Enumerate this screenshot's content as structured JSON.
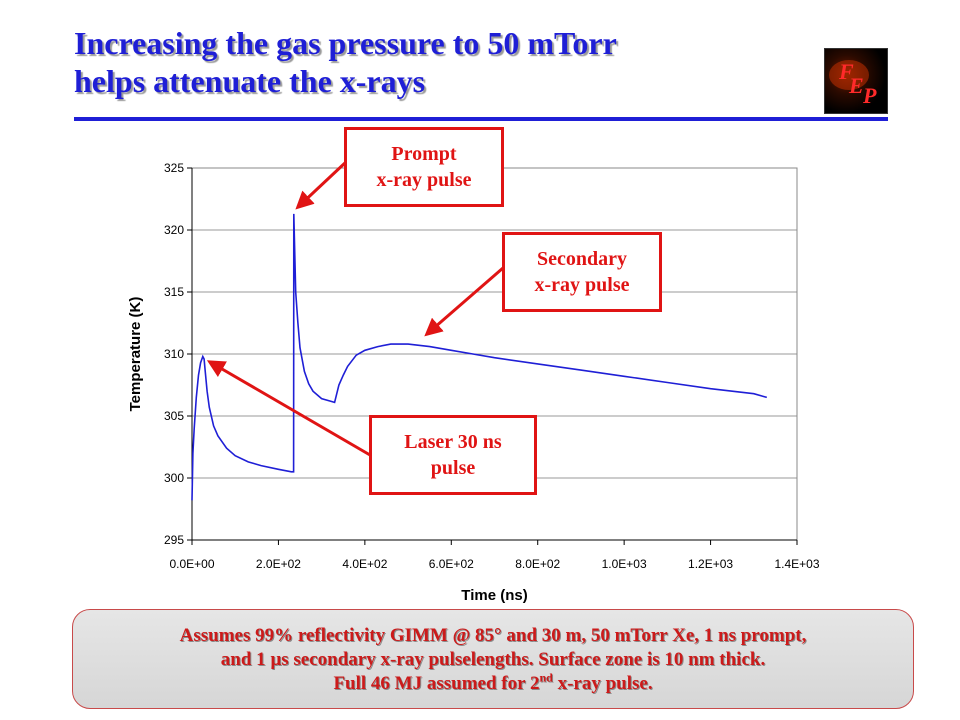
{
  "slide": {
    "title_line1": "Increasing the gas pressure to 50 mTorr",
    "title_line2": "helps attenuate the x-rays",
    "logo_text": [
      "F",
      "E",
      "P"
    ]
  },
  "callouts": {
    "prompt": [
      "Prompt",
      "x-ray pulse"
    ],
    "secondary": [
      "Secondary",
      "x-ray pulse"
    ],
    "laser": [
      "Laser 30 ns",
      "pulse"
    ]
  },
  "note": {
    "line1": "Assumes 99% reflectivity GIMM @ 85° and 30 m, 50 mTorr Xe, 1 ns prompt,",
    "line2_pre": "and 1 ",
    "line2_mu": "μ",
    "line2_post": "s secondary x-ray pulselengths. Surface zone is 10 nm thick.",
    "line3_pre": "Full 46 MJ assumed for 2",
    "line3_sup": "nd",
    "line3_post": " x-ray pulse."
  },
  "colors": {
    "title": "#1f1fd6",
    "series": "#1f1fd6",
    "callout": "#e01414"
  },
  "chart_data": {
    "type": "line",
    "xlabel": "Time (ns)",
    "ylabel": "Temperature (K)",
    "xlim": [
      0,
      1400
    ],
    "ylim": [
      295,
      325
    ],
    "xticks": [
      0,
      200,
      400,
      600,
      800,
      1000,
      1200,
      1400
    ],
    "xtick_labels": [
      "0.0E+00",
      "2.0E+02",
      "4.0E+02",
      "6.0E+02",
      "8.0E+02",
      "1.0E+03",
      "1.2E+03",
      "1.4E+03"
    ],
    "yticks": [
      295,
      300,
      305,
      310,
      315,
      320,
      325
    ],
    "ytick_labels": [
      "295",
      "300",
      "305",
      "310",
      "315",
      "320",
      "325"
    ],
    "grid": "horizontal",
    "legend": "none",
    "series": [
      {
        "x": [
          0,
          2,
          5,
          10,
          15,
          20,
          25,
          28,
          30,
          35,
          40,
          50,
          60,
          80,
          100,
          130,
          160,
          200,
          230,
          235,
          235.5,
          240,
          245,
          250,
          260,
          270,
          280,
          300,
          320,
          330,
          340,
          350,
          360,
          380,
          400,
          430,
          460,
          500,
          550,
          600,
          650,
          700,
          800,
          900,
          1000,
          1100,
          1200,
          1300,
          1330
        ],
        "y": [
          298.2,
          302.0,
          304.0,
          306.5,
          308.3,
          309.3,
          309.8,
          309.6,
          308.8,
          307.0,
          305.7,
          304.2,
          303.4,
          302.4,
          301.8,
          301.3,
          301.0,
          300.7,
          300.5,
          300.5,
          321.3,
          315.0,
          312.5,
          310.5,
          308.6,
          307.6,
          307.0,
          306.4,
          306.2,
          306.1,
          307.5,
          308.3,
          309.0,
          309.9,
          310.3,
          310.6,
          310.8,
          310.8,
          310.6,
          310.3,
          310.0,
          309.7,
          309.2,
          308.7,
          308.2,
          307.7,
          307.2,
          306.8,
          306.5
        ]
      }
    ]
  }
}
